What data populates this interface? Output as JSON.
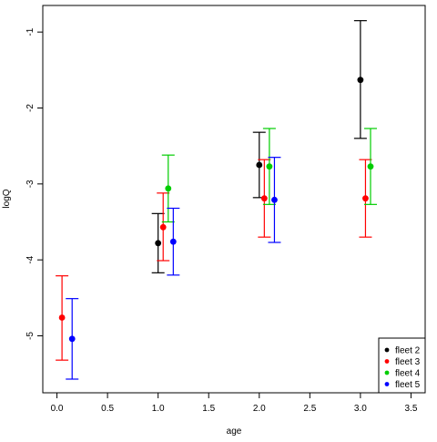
{
  "chart_data": {
    "type": "scatter",
    "title": "",
    "xlabel": "age",
    "ylabel": "logQ",
    "xlim": [
      -0.14,
      3.64
    ],
    "ylim": [
      -5.75,
      -0.65
    ],
    "x_ticks": [
      0,
      0.5,
      1,
      1.5,
      2,
      2.5,
      3,
      3.5
    ],
    "x_tick_labels": [
      "0.0",
      "0.5",
      "1.0",
      "1.5",
      "2.0",
      "2.5",
      "3.0",
      "3.5"
    ],
    "y_ticks": [
      -5,
      -4,
      -3,
      -2,
      -1
    ],
    "y_tick_labels": [
      "-5",
      "-4",
      "-3",
      "-2",
      "-1"
    ],
    "grid": false,
    "legend_position": "bottom-right",
    "series": [
      {
        "name": "fleet 2",
        "color": "#000000",
        "points": [
          {
            "x": 1.0,
            "y": -3.78,
            "lower": -4.17,
            "upper": -3.39
          },
          {
            "x": 2.0,
            "y": -2.75,
            "lower": -3.18,
            "upper": -2.32
          },
          {
            "x": 3.0,
            "y": -1.63,
            "lower": -2.4,
            "upper": -0.85
          }
        ]
      },
      {
        "name": "fleet 3",
        "color": "#ff0000",
        "points": [
          {
            "x": 0.05,
            "y": -4.76,
            "lower": -5.32,
            "upper": -4.21
          },
          {
            "x": 1.05,
            "y": -3.57,
            "lower": -4.01,
            "upper": -3.12
          },
          {
            "x": 2.05,
            "y": -3.19,
            "lower": -3.7,
            "upper": -2.68
          },
          {
            "x": 3.05,
            "y": -3.19,
            "lower": -3.7,
            "upper": -2.68
          }
        ]
      },
      {
        "name": "fleet 4",
        "color": "#00cd00",
        "points": [
          {
            "x": 1.1,
            "y": -3.06,
            "lower": -3.5,
            "upper": -2.62
          },
          {
            "x": 2.1,
            "y": -2.77,
            "lower": -3.27,
            "upper": -2.27
          },
          {
            "x": 3.1,
            "y": -2.77,
            "lower": -3.27,
            "upper": -2.27
          }
        ]
      },
      {
        "name": "fleet 5",
        "color": "#0000ff",
        "points": [
          {
            "x": 0.15,
            "y": -5.04,
            "lower": -5.57,
            "upper": -4.51
          },
          {
            "x": 1.15,
            "y": -3.76,
            "lower": -4.2,
            "upper": -3.32
          },
          {
            "x": 2.15,
            "y": -3.21,
            "lower": -3.77,
            "upper": -2.65
          }
        ]
      }
    ]
  }
}
